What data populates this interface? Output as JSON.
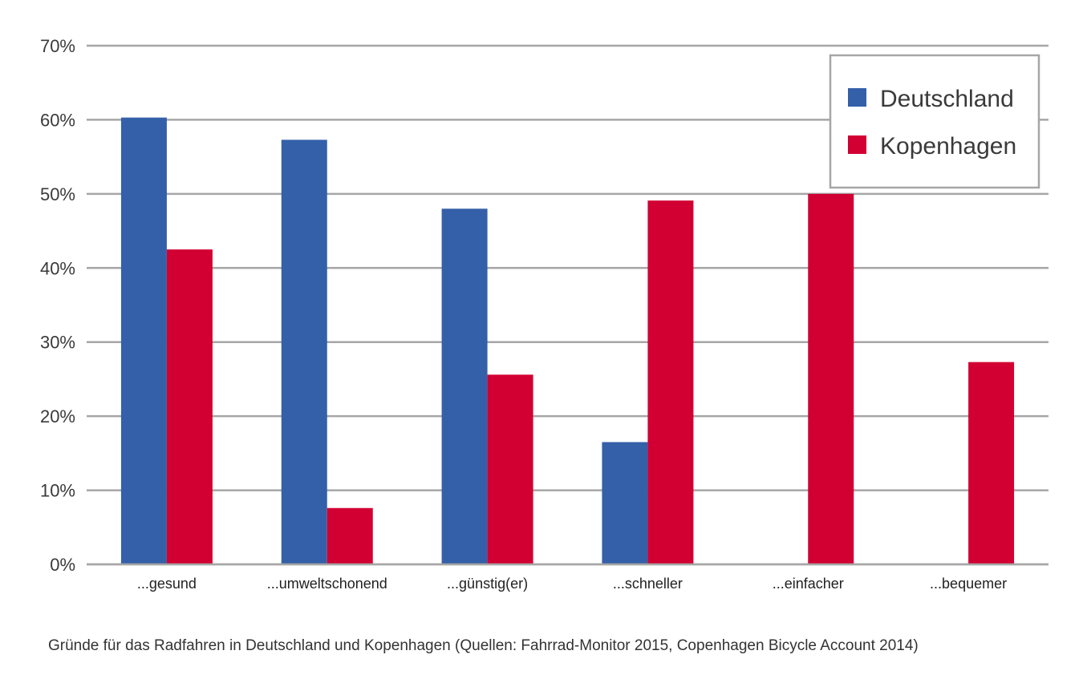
{
  "chart_data": {
    "type": "bar",
    "categories": [
      "...gesund",
      "...umweltschonend",
      "...günstig(er)",
      "...schneller",
      "...einfacher",
      "...bequemer"
    ],
    "series": [
      {
        "name": "Deutschland",
        "color": "#3460a9",
        "values": [
          60.3,
          57.3,
          48.0,
          16.5,
          null,
          null
        ]
      },
      {
        "name": "Kopenhagen",
        "color": "#d20032",
        "values": [
          42.5,
          7.6,
          25.6,
          49.1,
          50.0,
          27.3
        ]
      }
    ],
    "ylim": [
      0,
      70
    ],
    "yticks": [
      0,
      10,
      20,
      30,
      40,
      50,
      60,
      70
    ],
    "ytick_labels": [
      "0%",
      "10%",
      "20%",
      "30%",
      "40%",
      "50%",
      "60%",
      "70%"
    ],
    "legend_position": "top-right",
    "grid": true,
    "caption": "Gründe für das Radfahren in Deutschland und Kopenhagen (Quellen: Fahrrad-Monitor 2015, Copenhagen Bicycle Account 2014)"
  }
}
